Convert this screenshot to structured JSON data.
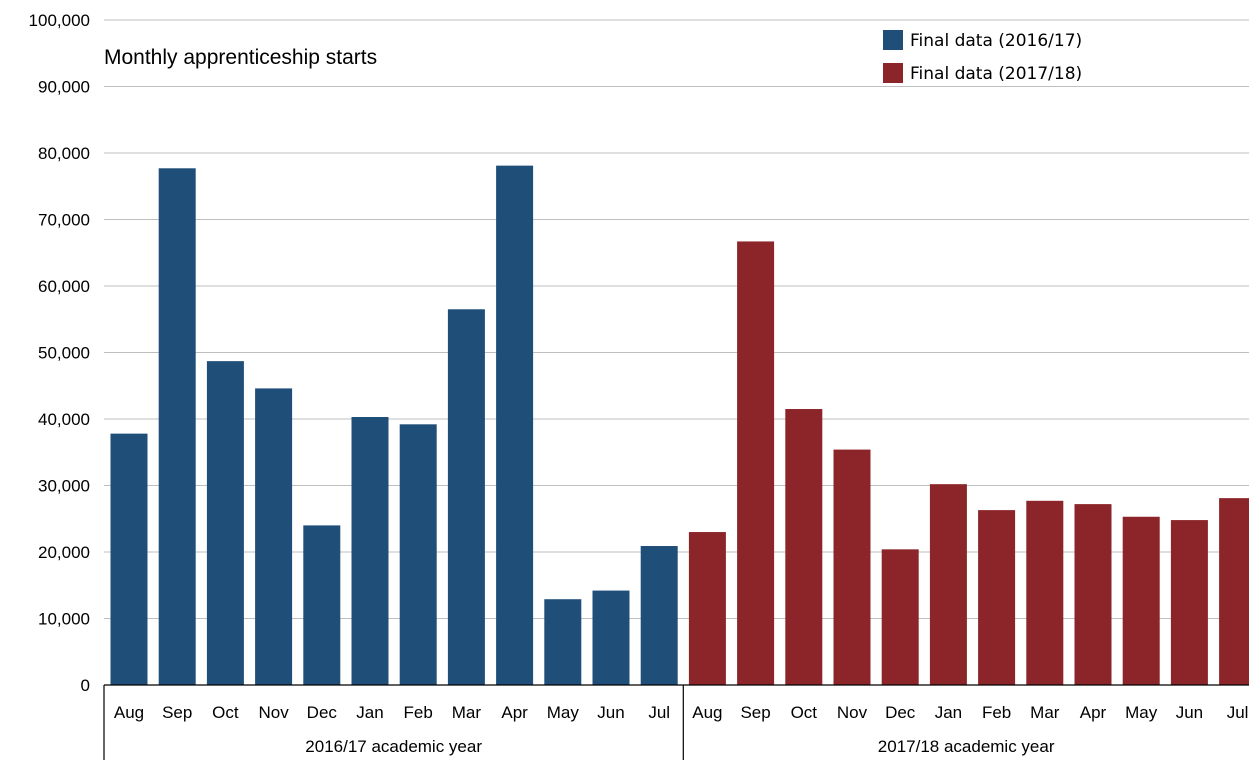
{
  "chart_data": {
    "type": "bar",
    "title": "Monthly apprenticeship starts",
    "xlabel": "",
    "ylabel": "",
    "ylim": [
      0,
      100000
    ],
    "yticks": [
      0,
      10000,
      20000,
      30000,
      40000,
      50000,
      60000,
      70000,
      80000,
      90000,
      100000
    ],
    "ytick_labels": [
      "0",
      "10,000",
      "20,000",
      "30,000",
      "40,000",
      "50,000",
      "60,000",
      "70,000",
      "80,000",
      "90,000",
      "100,000"
    ],
    "grid": true,
    "legend_position": "top-right",
    "groups": [
      {
        "label": "2016/17 academic year",
        "categories": [
          "Aug",
          "Sep",
          "Oct",
          "Nov",
          "Dec",
          "Jan",
          "Feb",
          "Mar",
          "Apr",
          "May",
          "Jun",
          "Jul"
        ]
      },
      {
        "label": "2017/18 academic year",
        "categories": [
          "Aug",
          "Sep",
          "Oct",
          "Nov",
          "Dec",
          "Jan",
          "Feb",
          "Mar",
          "Apr",
          "May",
          "Jun",
          "Jul"
        ]
      }
    ],
    "series": [
      {
        "name": "Final data (2016/17)",
        "color": "#1f4e79",
        "values": [
          37800,
          77700,
          48700,
          44600,
          24000,
          40300,
          39200,
          56500,
          78100,
          12900,
          14200,
          20900
        ]
      },
      {
        "name": "Final data (2017/18)",
        "color": "#8b2529",
        "values": [
          23000,
          66700,
          41500,
          35400,
          20400,
          30200,
          26300,
          27700,
          27200,
          25300,
          24800,
          28100
        ]
      }
    ]
  }
}
